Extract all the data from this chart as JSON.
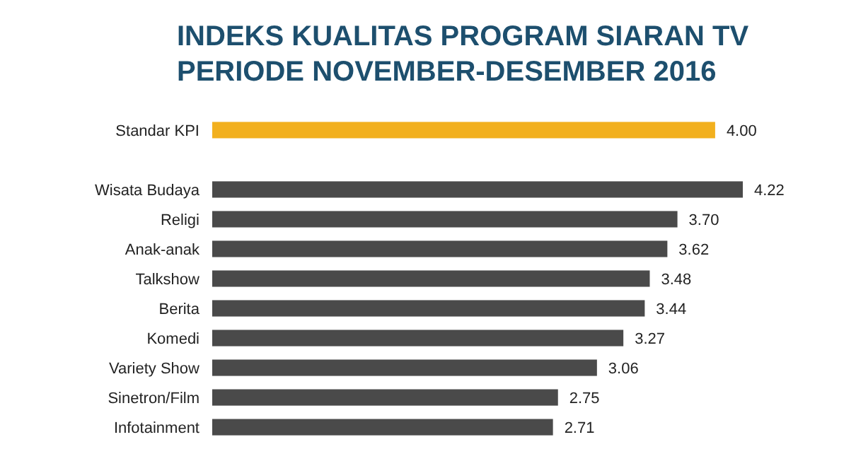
{
  "chart_data": {
    "type": "bar",
    "orientation": "horizontal",
    "title": "INDEKS KUALITAS PROGRAM SIARAN TV\nPERIODE NOVEMBER-DESEMBER 2016",
    "categories": [
      "Standar KPI",
      null,
      "Wisata Budaya",
      "Religi",
      "Anak-anak",
      "Talkshow",
      "Berita",
      "Komedi",
      "Variety Show",
      "Sinetron/Film",
      "Infotainment"
    ],
    "values": [
      4.0,
      null,
      4.22,
      3.7,
      3.62,
      3.48,
      3.44,
      3.27,
      3.06,
      2.75,
      2.71
    ],
    "value_labels": [
      "4.00",
      null,
      "4.22",
      "3.70",
      "3.62",
      "3.48",
      "3.44",
      "3.27",
      "3.06",
      "2.75",
      "2.71"
    ],
    "colors": [
      "#f2b01e",
      null,
      "#4a4a4a",
      "#4a4a4a",
      "#4a4a4a",
      "#4a4a4a",
      "#4a4a4a",
      "#4a4a4a",
      "#4a4a4a",
      "#4a4a4a",
      "#4a4a4a"
    ]
  }
}
